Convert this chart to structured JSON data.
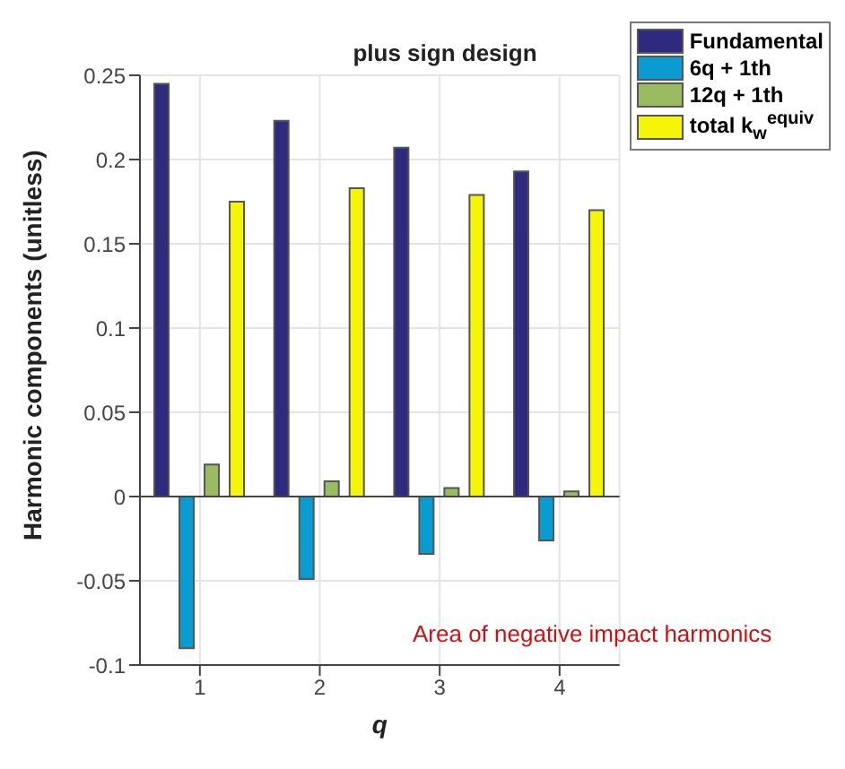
{
  "chart_data": {
    "type": "bar",
    "title": "plus sign design",
    "xlabel": "q",
    "ylabel": "Harmonic components (unitless)",
    "categories": [
      "1",
      "2",
      "3",
      "4"
    ],
    "series": [
      {
        "name": "Fundamental",
        "color": "#2e2a7e",
        "values": [
          0.245,
          0.223,
          0.207,
          0.193
        ]
      },
      {
        "name": "6q + 1th",
        "color": "#0a9bd0",
        "values": [
          -0.09,
          -0.049,
          -0.034,
          -0.026
        ]
      },
      {
        "name": "12q + 1th",
        "color": "#9bbb62",
        "values": [
          0.019,
          0.009,
          0.005,
          0.003
        ]
      },
      {
        "name": "total k$_{w}$$^{equiv}$",
        "color": "#f5f50a",
        "values": [
          0.175,
          0.183,
          0.179,
          0.17
        ]
      }
    ],
    "ylim": [
      -0.1,
      0.25
    ],
    "yticks": [
      -0.1,
      -0.05,
      0,
      0.05,
      0.1,
      0.15,
      0.2,
      0.25
    ],
    "grid": true,
    "legend": "top right",
    "annotations": [
      "Area of negative impact harmonics"
    ]
  }
}
